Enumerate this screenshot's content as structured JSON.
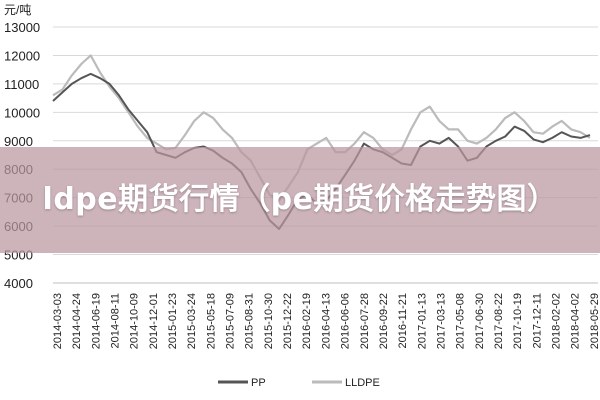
{
  "chart_data": {
    "type": "line",
    "title": "",
    "ylabel": "元/吨",
    "xlabel": "",
    "ylim": [
      4000,
      13000
    ],
    "yticks": [
      "13000",
      "12000",
      "11000",
      "10000",
      "9000",
      "8000",
      "7000",
      "6000",
      "5000",
      "4000"
    ],
    "x_tick_labels": [
      "2014-03-03",
      "2014-04-24",
      "2014-06-19",
      "2014-08-11",
      "2014-10-09",
      "2014-12-01",
      "2015-01-23",
      "2015-03-24",
      "2015-05-18",
      "2015-07-09",
      "2015-08-31",
      "2015-10-30",
      "2015-12-22",
      "2016-02-19",
      "2016-04-13",
      "2016-06-06",
      "2016-07-28",
      "2016-09-22",
      "2016-11-21",
      "2017-01-13",
      "2017-03-13",
      "2017-05-08",
      "2017-06-30",
      "2017-08-22",
      "2017-10-19",
      "2017-12-11",
      "2018-02-02",
      "2018-04-02",
      "2018-05-29"
    ],
    "grid": true,
    "legend_position": "bottom",
    "series": [
      {
        "name": "PP",
        "color": "#555555",
        "values": [
          10400,
          10700,
          11000,
          11200,
          11350,
          11200,
          11000,
          10600,
          10100,
          9700,
          9300,
          8600,
          8500,
          8400,
          8600,
          8750,
          8800,
          8650,
          8400,
          8200,
          7900,
          7300,
          6800,
          6200,
          5900,
          6400,
          6950,
          7100,
          6800,
          6900,
          7300,
          7800,
          8300,
          8900,
          8700,
          8600,
          8400,
          8200,
          8150,
          8800,
          9000,
          8900,
          9100,
          8800,
          8300,
          8400,
          8800,
          9000,
          9150,
          9500,
          9350,
          9050,
          8950,
          9100,
          9300,
          9150,
          9100,
          9200
        ]
      },
      {
        "name": "LLDPE",
        "color": "#bbbbbb",
        "values": [
          10600,
          10800,
          11300,
          11700,
          12000,
          11400,
          10900,
          10500,
          10000,
          9500,
          9100,
          8900,
          8700,
          8750,
          9200,
          9700,
          10000,
          9800,
          9400,
          9100,
          8600,
          8300,
          7700,
          7100,
          6900,
          7400,
          7900,
          8700,
          8900,
          9100,
          8600,
          8600,
          8900,
          9300,
          9100,
          8700,
          8500,
          8700,
          9400,
          10000,
          10200,
          9700,
          9400,
          9400,
          9000,
          8900,
          9100,
          9400,
          9800,
          10000,
          9700,
          9300,
          9250,
          9500,
          9700,
          9400,
          9300,
          9100
        ]
      }
    ]
  },
  "overlay": {
    "text": "ldpe期货行情（pe期货价格走势图）",
    "background": "#ba96a0"
  }
}
